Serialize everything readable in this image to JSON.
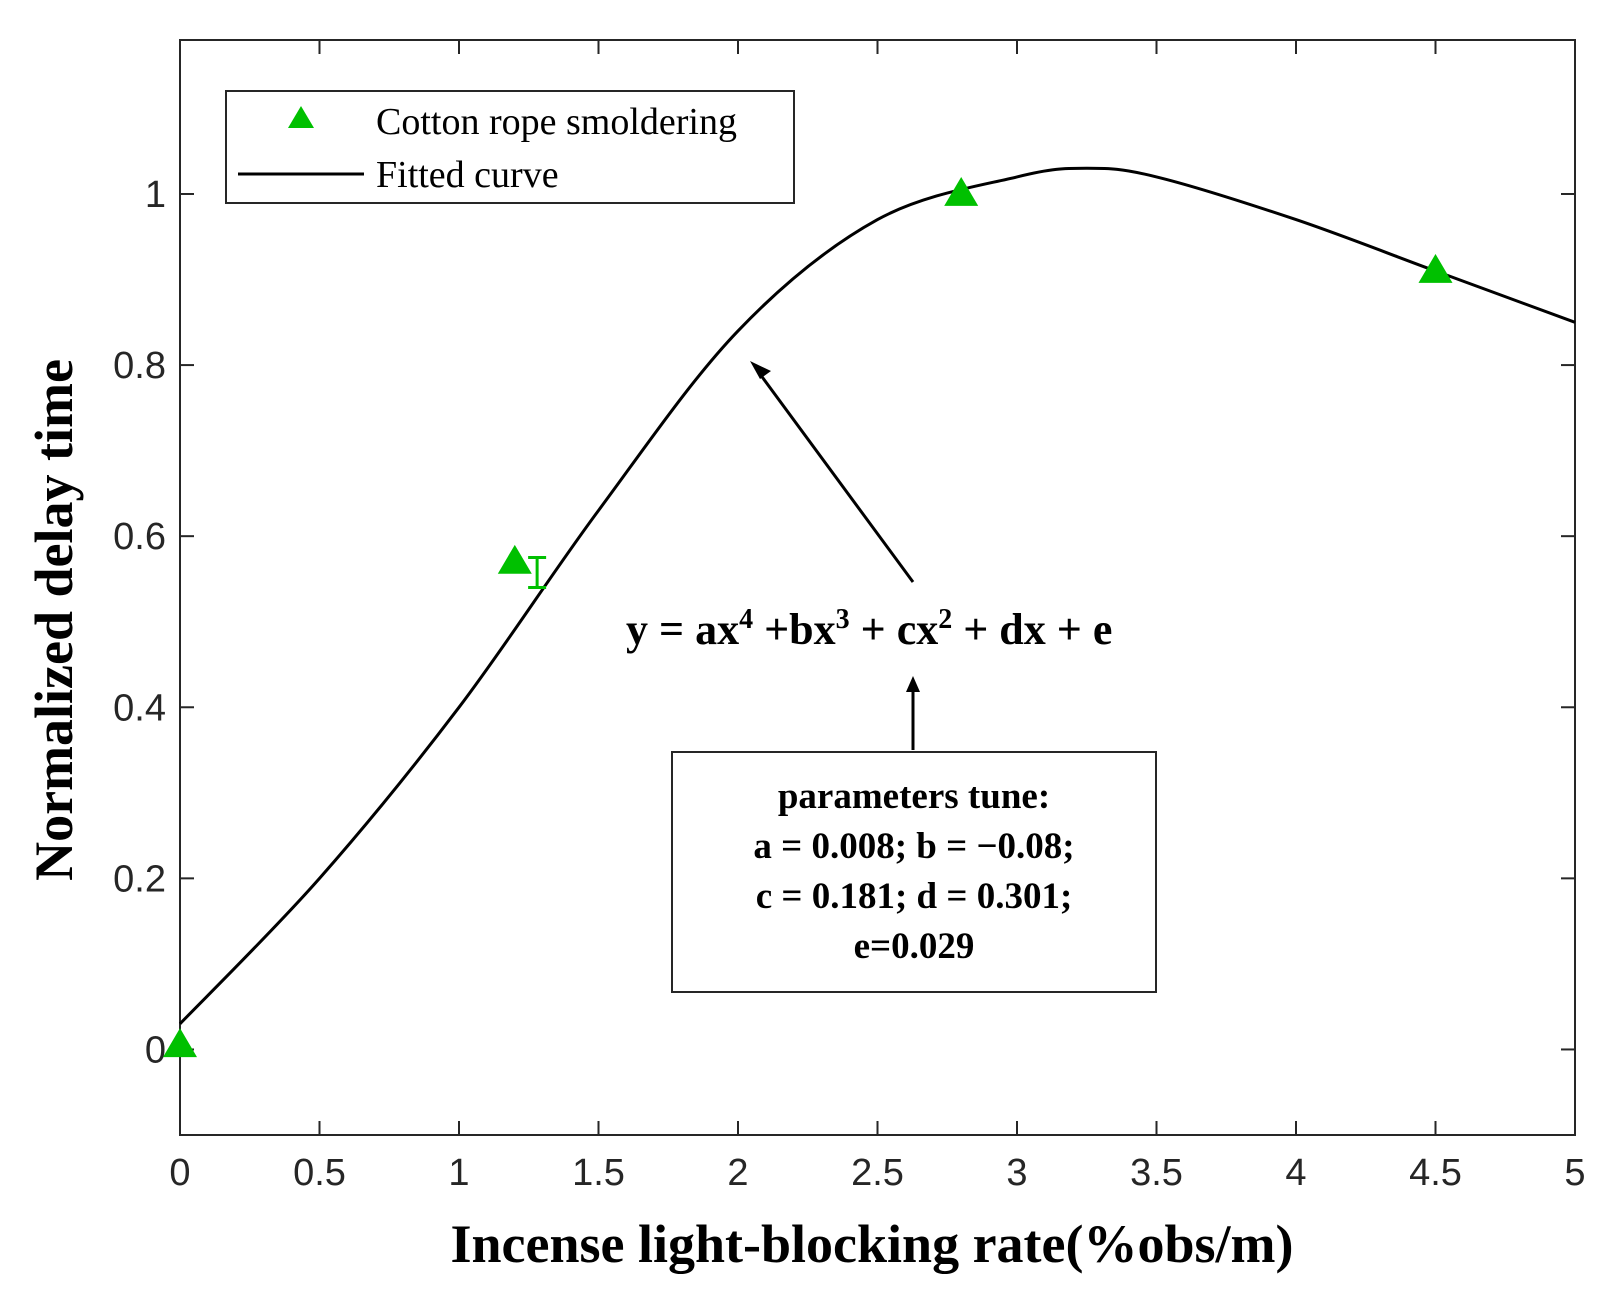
{
  "chart_data": {
    "type": "scatter",
    "xlabel": "Incense light-blocking rate(%obs/m)",
    "ylabel": "Normalized delay time",
    "xlim": [
      0,
      5
    ],
    "ylim": [
      -0.1,
      1.18
    ],
    "xticks": [
      0,
      0.5,
      1,
      1.5,
      2,
      2.5,
      3,
      3.5,
      4,
      4.5,
      5
    ],
    "xtick_labels": [
      "0",
      "0.5",
      "1",
      "1.5",
      "2",
      "2.5",
      "3",
      "3.5",
      "4",
      "4.5",
      "5"
    ],
    "yticks": [
      0,
      0.2,
      0.4,
      0.6,
      0.8,
      1
    ],
    "ytick_labels": [
      "0",
      "0.2",
      "0.4",
      "0.6",
      "0.8",
      "1"
    ],
    "legend_position": "top-left",
    "series": [
      {
        "name": "Cotton rope smoldering",
        "kind": "markers",
        "marker": "triangle",
        "color": "#00c000",
        "x": [
          0,
          1.2,
          2.8,
          4.5
        ],
        "y": [
          0.005,
          0.57,
          1.0,
          0.91
        ]
      },
      {
        "name": "Fitted curve",
        "kind": "line",
        "color": "#000000",
        "description_points_x": [
          0,
          0.5,
          1,
          1.5,
          2,
          2.5,
          3,
          3.25,
          3.5,
          4,
          4.5,
          5
        ],
        "description_points_y": [
          0.03,
          0.2,
          0.4,
          0.63,
          0.84,
          0.97,
          1.02,
          1.03,
          1.02,
          0.97,
          0.91,
          0.85
        ]
      }
    ],
    "error_bar": {
      "x": 1.28,
      "y_low": 0.54,
      "y_high": 0.575,
      "color": "#00c000"
    },
    "annotations": {
      "equation": {
        "prefix": "y = ax",
        "exp1": "4",
        "part2": " +bx",
        "exp2": "3",
        "part3": " + cx",
        "exp3": "2",
        "part4": " + dx + e"
      },
      "params_box": {
        "lines": [
          "parameters tune:",
          "a = 0.008; b = −0.08;",
          "c = 0.181; d = 0.301;",
          "e=0.029"
        ]
      }
    }
  }
}
